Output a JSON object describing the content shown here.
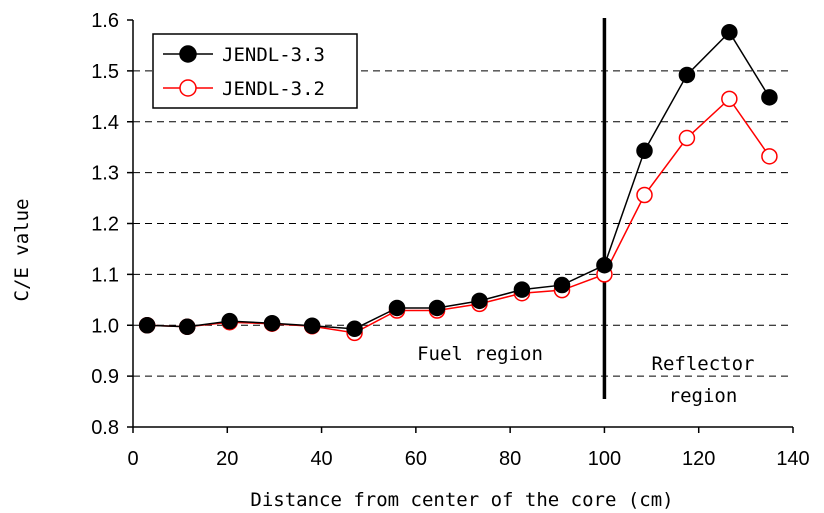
{
  "chart_data": {
    "type": "line",
    "xlabel": "Distance from center of the core (cm)",
    "ylabel": "C/E value",
    "xlim": [
      0,
      140
    ],
    "ylim": [
      0.8,
      1.6
    ],
    "xticks": [
      "0",
      "20",
      "40",
      "60",
      "80",
      "100",
      "120",
      "140"
    ],
    "yticks": [
      "0.8",
      "0.9",
      "1.0",
      "1.1",
      "1.2",
      "1.3",
      "1.4",
      "1.5",
      "1.6"
    ],
    "grid": "horizontal dashed",
    "legend_position": "top-left",
    "divider_x": 100,
    "annotations": [
      "Fuel region",
      "Reflector",
      "region"
    ],
    "series": [
      {
        "name": "JENDL-3.3",
        "color": "#000000",
        "marker": "filled-circle",
        "x": [
          3,
          11.5,
          20.5,
          29.5,
          38,
          47,
          56,
          64.5,
          73.5,
          82.5,
          91,
          100,
          108.5,
          117.5,
          126.5,
          135
        ],
        "y": [
          1.0,
          0.997,
          1.008,
          1.004,
          0.999,
          0.993,
          1.034,
          1.034,
          1.048,
          1.07,
          1.079,
          1.118,
          1.343,
          1.492,
          1.576,
          1.448
        ]
      },
      {
        "name": "JENDL-3.2",
        "color": "#ff0000",
        "marker": "open-circle",
        "x": [
          3,
          11.5,
          20.5,
          29.5,
          38,
          47,
          56,
          64.5,
          73.5,
          82.5,
          91,
          100,
          108.5,
          117.5,
          126.5,
          135
        ],
        "y": [
          1.0,
          0.997,
          1.006,
          1.003,
          0.998,
          0.985,
          1.029,
          1.029,
          1.042,
          1.063,
          1.069,
          1.1,
          1.256,
          1.368,
          1.445,
          1.332
        ]
      }
    ]
  }
}
